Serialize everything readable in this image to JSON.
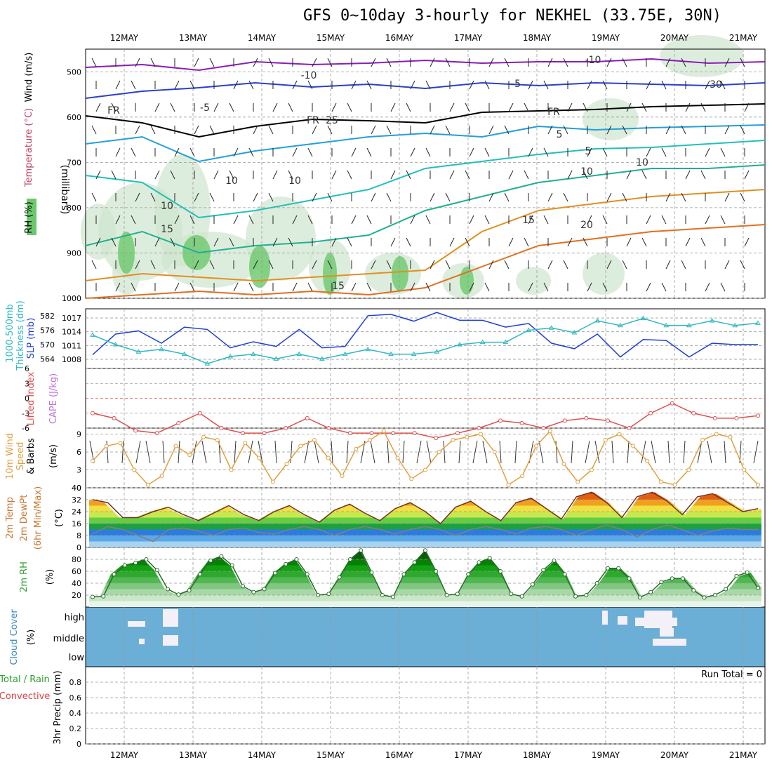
{
  "title": "GFS 0~10day 3-hourly for NEKHEL (33.75E, 30N)",
  "run_total_label": "Run Total = 0",
  "colors": {
    "axis": "#000000",
    "grid": "#999999",
    "cloud_bg": "#6baed6",
    "rh_green": "#2ca02c",
    "slp": "#1f3fd6",
    "thickness": "#2fb8c0",
    "li": "#e05050",
    "cape": "#c070e0",
    "wind10": "#e0a040",
    "temp2m": "#c87830",
    "dew2m": "#808080"
  },
  "chart_data": [
    {
      "panel": "profile",
      "type": "contour",
      "x_ticks": [
        "12MAY",
        "13MAY",
        "14MAY",
        "15MAY",
        "16MAY",
        "17MAY",
        "18MAY",
        "19MAY",
        "20MAY",
        "21MAY"
      ],
      "ylabel": "(millibars)",
      "side_labels": [
        "RH (%)",
        "Temperature (°C)",
        "Wind (m/s)"
      ],
      "y_ticks": [
        500,
        600,
        700,
        800,
        900,
        1000
      ],
      "ylim": [
        450,
        1000
      ],
      "contour_labels": [
        "-10",
        "-10",
        "-5",
        "-5",
        "FR",
        "FR",
        "FR",
        "5",
        "5",
        "10",
        "10",
        "15",
        "15",
        "20",
        "25",
        "10",
        "10",
        "10",
        "30",
        "15"
      ]
    },
    {
      "panel": "slp_thickness",
      "type": "line",
      "ylabels": [
        "1000-500mb",
        "Thickness (dm)",
        "SLP (mb)"
      ],
      "thickness_ticks": [
        564,
        570,
        576,
        582
      ],
      "slp_ticks": [
        1008,
        1011,
        1014,
        1017
      ],
      "series": [
        {
          "name": "SLP (mb)",
          "values": [
            1009,
            1013.5,
            1014.2,
            1011.5,
            1015,
            1014.5,
            1010.5,
            1011.8,
            1010.8,
            1014.5,
            1010.5,
            1010.8,
            1017.5,
            1017.8,
            1016.3,
            1018.2,
            1016.5,
            1016.5,
            1015,
            1015.8,
            1011.5,
            1010.3,
            1013.5,
            1008.5,
            1012.3,
            1012.1,
            1008.5,
            1011.5,
            1011.2,
            1011.2
          ]
        },
        {
          "name": "1000-500mb Thickness (dm)",
          "values": [
            574,
            570,
            567,
            568,
            566,
            562,
            565,
            566,
            564,
            566,
            564,
            566,
            568,
            566,
            566,
            567,
            570,
            571,
            571,
            576,
            577,
            575,
            580,
            578,
            581,
            578,
            578,
            580,
            578,
            579
          ]
        }
      ]
    },
    {
      "panel": "stability",
      "type": "line",
      "ylabels": [
        "Lifted Index",
        "CAPE (J/kg)"
      ],
      "y_ticks": [
        6,
        3,
        0,
        -3,
        -6
      ],
      "ylim": [
        6,
        -6
      ],
      "series": [
        {
          "name": "Lifted Index",
          "values": [
            3,
            4,
            6.5,
            7,
            5,
            3,
            6,
            7,
            7,
            6,
            4,
            6,
            7,
            7,
            7,
            7,
            8,
            7,
            6,
            4.5,
            5,
            6,
            4.5,
            4,
            4.5,
            6,
            3,
            1,
            3,
            4,
            4,
            3.5
          ]
        }
      ]
    },
    {
      "panel": "wind10m",
      "type": "line",
      "ylabels": [
        "10m Wind",
        "Speed",
        "& Barbs",
        "(m/s)"
      ],
      "y_ticks": [
        0,
        3,
        6,
        9
      ],
      "ylim": [
        0,
        10
      ],
      "series": [
        {
          "name": "10m Wind Speed",
          "values": [
            4.5,
            7,
            7.5,
            3,
            0.5,
            2,
            7,
            5.5,
            8.5,
            8,
            3,
            7.5,
            5,
            1,
            4,
            7,
            8,
            5,
            2,
            6.5,
            8,
            9.5,
            5,
            1.5,
            3,
            6,
            8,
            8.5,
            9,
            6,
            0.5,
            2,
            7,
            9.5,
            4,
            1,
            3,
            8,
            9,
            7,
            4.5,
            1,
            0.5,
            3,
            8,
            9,
            8.5,
            3,
            0.5
          ]
        }
      ]
    },
    {
      "panel": "temp2m",
      "type": "area",
      "ylabels": [
        "2m Temp",
        "2m DewPt",
        "(6hr Min/Max)",
        "(°C)"
      ],
      "y_ticks": [
        0,
        8,
        16,
        24,
        32,
        40
      ],
      "ylim": [
        0,
        40
      ],
      "series": [
        {
          "name": "2m Temp",
          "values": [
            32,
            30,
            20,
            20,
            24,
            27,
            22,
            18,
            23,
            28,
            22,
            18,
            24,
            28,
            22,
            17,
            25,
            29,
            23,
            18,
            26,
            30,
            24,
            16,
            27,
            31,
            24,
            18,
            30,
            33,
            26,
            19,
            34,
            37,
            30,
            20,
            34,
            37,
            31,
            22,
            34,
            36,
            30,
            24,
            26
          ]
        },
        {
          "name": "2m DewPt",
          "values": [
            9,
            14,
            12,
            8,
            4,
            12,
            13,
            11,
            8,
            12,
            13,
            10,
            9,
            12,
            14,
            12,
            8,
            12,
            14,
            12,
            9,
            12,
            14,
            12,
            8,
            12,
            14,
            12,
            9,
            13,
            14,
            12,
            8,
            12,
            15,
            12,
            7,
            12,
            15,
            12,
            8,
            11,
            13,
            12,
            12
          ]
        }
      ]
    },
    {
      "panel": "rh2m",
      "type": "area",
      "ylabels": [
        "2m RH",
        "(%)"
      ],
      "y_ticks": [
        20,
        40,
        60,
        80
      ],
      "ylim": [
        0,
        100
      ],
      "series": [
        {
          "name": "2m RH",
          "values": [
            17,
            18,
            55,
            70,
            74,
            80,
            62,
            30,
            21,
            28,
            55,
            78,
            85,
            70,
            35,
            25,
            30,
            57,
            72,
            80,
            55,
            20,
            22,
            50,
            80,
            95,
            58,
            20,
            17,
            55,
            75,
            95,
            60,
            20,
            22,
            55,
            75,
            82,
            60,
            22,
            18,
            38,
            62,
            78,
            55,
            18,
            20,
            40,
            65,
            65,
            48,
            16,
            25,
            42,
            48,
            48,
            28,
            16,
            20,
            30,
            52,
            58,
            32
          ]
        }
      ]
    },
    {
      "panel": "cloud",
      "type": "heatmap",
      "ylabels": [
        "Cloud Cover",
        "(%)"
      ],
      "levels": [
        "high",
        "middle",
        "low"
      ]
    },
    {
      "panel": "precip",
      "type": "bar",
      "ylabels": [
        "Total / Rain",
        "Convective",
        "3hr Precip (mm)"
      ],
      "y_ticks": [
        0,
        0.2,
        0.4,
        0.6,
        0.8
      ],
      "ylim": [
        0,
        1
      ],
      "values": []
    }
  ]
}
